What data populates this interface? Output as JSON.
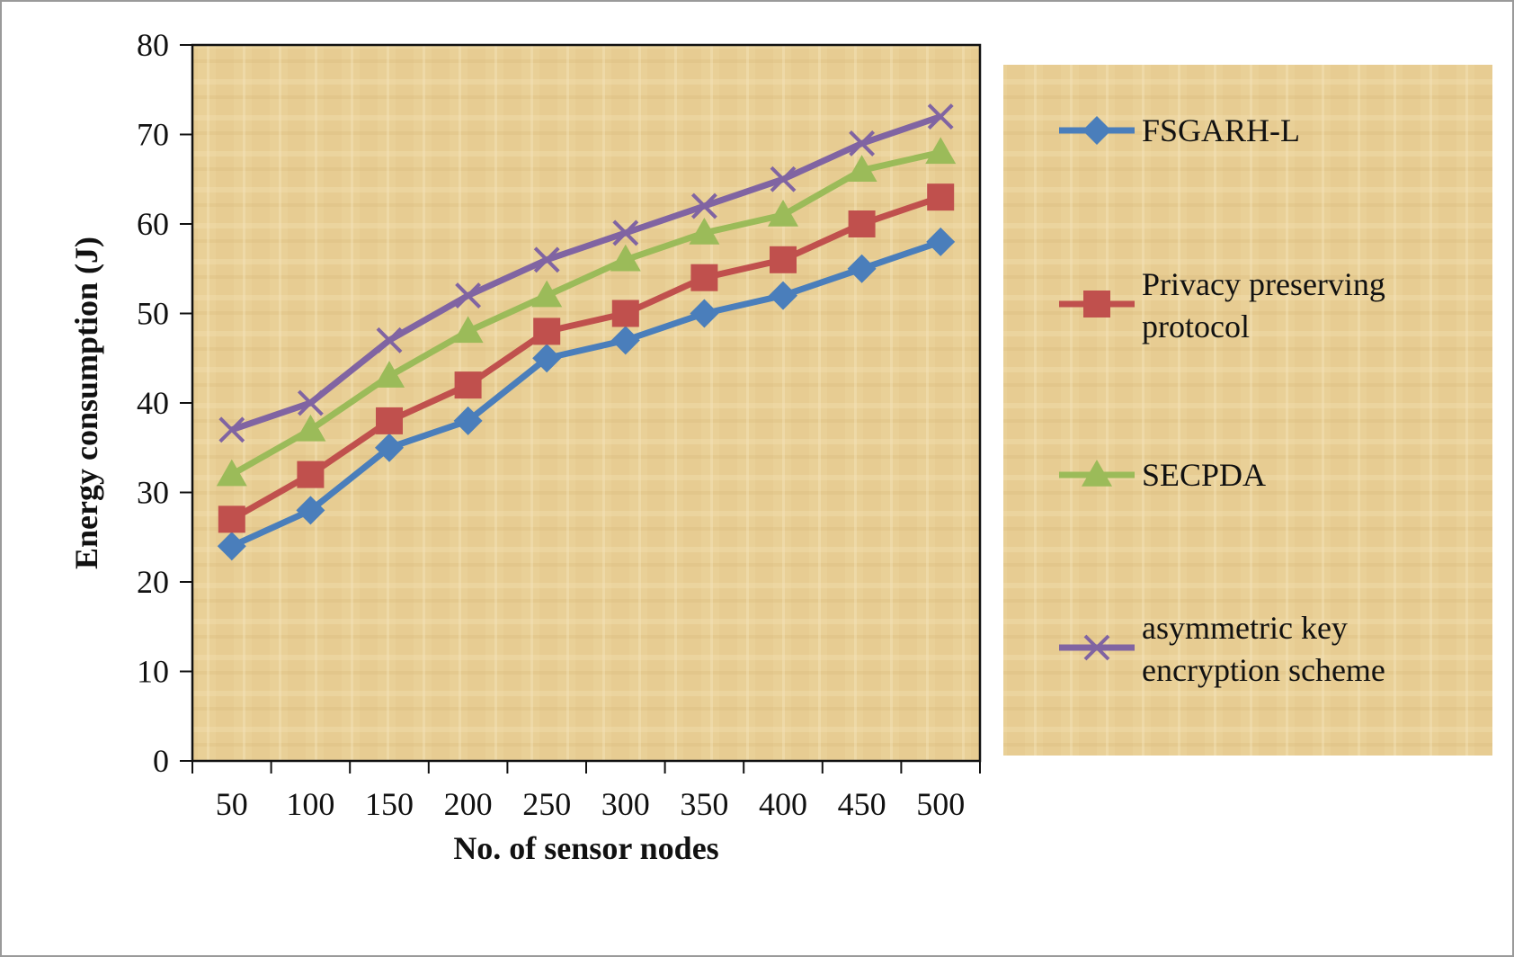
{
  "chart_data": {
    "type": "line",
    "title": "",
    "xlabel": "No. of sensor nodes",
    "ylabel": "Energy consumption (J)",
    "categories": [
      "50",
      "100",
      "150",
      "200",
      "250",
      "300",
      "350",
      "400",
      "450",
      "500"
    ],
    "y_ticks": [
      "0",
      "10",
      "20",
      "30",
      "40",
      "50",
      "60",
      "70",
      "80"
    ],
    "ylim": [
      0,
      80
    ],
    "grid": false,
    "legend_position": "right",
    "series": [
      {
        "name": "FSGARH-L",
        "color": "#4a7ebb",
        "marker": "diamond",
        "values": [
          24,
          28,
          35,
          38,
          45,
          47,
          50,
          52,
          55,
          58
        ]
      },
      {
        "name": "Privacy preserving protocol",
        "color": "#c0504d",
        "marker": "square",
        "values": [
          27,
          32,
          38,
          42,
          48,
          50,
          54,
          56,
          60,
          63
        ]
      },
      {
        "name": "SECPDA",
        "color": "#9bbb59",
        "marker": "triangle",
        "values": [
          32,
          37,
          43,
          48,
          52,
          56,
          59,
          61,
          66,
          68
        ]
      },
      {
        "name": "asymmetric key encryption scheme",
        "color": "#8064a2",
        "marker": "x",
        "values": [
          37,
          40,
          47,
          52,
          56,
          59,
          62,
          65,
          69,
          72
        ]
      }
    ],
    "legend_lines": [
      [
        "FSGARH-L"
      ],
      [
        "Privacy preserving",
        "protocol"
      ],
      [
        "SECPDA"
      ],
      [
        "asymmetric key",
        "encryption scheme"
      ]
    ],
    "plot_background": "#e8cf94",
    "legend_background": "#e8cf94"
  }
}
